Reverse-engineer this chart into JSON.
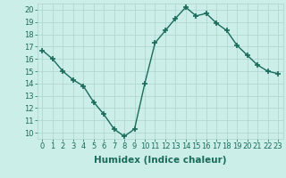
{
  "x": [
    0,
    1,
    2,
    3,
    4,
    5,
    6,
    7,
    8,
    9,
    10,
    11,
    12,
    13,
    14,
    15,
    16,
    17,
    18,
    19,
    20,
    21,
    22,
    23
  ],
  "y": [
    16.7,
    16.0,
    15.0,
    14.3,
    13.8,
    12.5,
    11.5,
    10.3,
    9.7,
    10.3,
    14.0,
    17.3,
    18.3,
    19.3,
    20.2,
    19.5,
    19.7,
    18.9,
    18.3,
    17.1,
    16.3,
    15.5,
    15.0,
    14.8
  ],
  "line_color": "#1a6b5a",
  "marker": "+",
  "bg_color": "#cceee8",
  "grid_color": "#aad4cc",
  "xlabel": "Humidex (Indice chaleur)",
  "xlim": [
    -0.5,
    23.5
  ],
  "ylim": [
    9.5,
    20.5
  ],
  "yticks": [
    10,
    11,
    12,
    13,
    14,
    15,
    16,
    17,
    18,
    19,
    20
  ],
  "xticks": [
    0,
    1,
    2,
    3,
    4,
    5,
    6,
    7,
    8,
    9,
    10,
    11,
    12,
    13,
    14,
    15,
    16,
    17,
    18,
    19,
    20,
    21,
    22,
    23
  ],
  "font_color": "#1a6b5a",
  "tick_fontsize": 6.0,
  "xlabel_fontsize": 7.5,
  "linewidth": 1.0,
  "markersize": 4,
  "markeredgewidth": 1.2
}
